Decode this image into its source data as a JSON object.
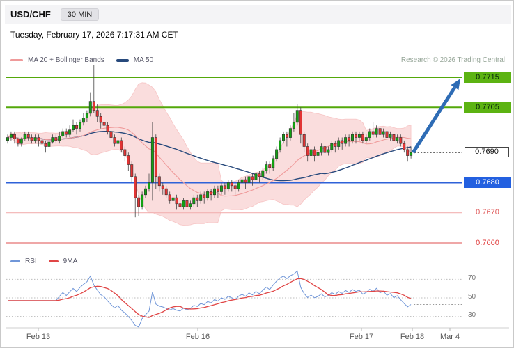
{
  "header": {
    "symbol": "USD/CHF",
    "interval": "30 MIN",
    "datetime": "Tuesday, February 17, 2026 7:17:31 AM CET"
  },
  "attribution": "Research © 2026 Trading Central",
  "legend": {
    "overlay": [
      {
        "label": "MA 20 + Bollinger Bands",
        "color": "#ef9a9a"
      },
      {
        "label": "MA 50",
        "color": "#27497c"
      }
    ],
    "lower": [
      {
        "label": "RSI",
        "color": "#7096d8"
      },
      {
        "label": "9MA",
        "color": "#e04545"
      }
    ]
  },
  "chart_data": {
    "type": "candlestick_with_rsi",
    "symbol": "USD/CHF",
    "interval": "30 MIN",
    "x_axis_labels": [
      "Feb 13",
      "Feb 16",
      "Feb 17",
      "Feb 18",
      "Mar 4"
    ],
    "levels": [
      {
        "label": "0.7715",
        "price": 0.7715,
        "role": "upside-target",
        "badge_bg": "#5cb312",
        "badge_text": "#06230b",
        "line_color": "#54a80a",
        "line_style": "solid",
        "line_width": 2
      },
      {
        "label": "0.7705",
        "price": 0.7705,
        "role": "resistance",
        "badge_bg": "#5cb312",
        "badge_text": "#06230b",
        "line_color": "#54a80a",
        "line_style": "solid",
        "line_width": 2
      },
      {
        "label": "0.7690",
        "price": 0.769,
        "role": "last-price",
        "badge_bg": "#ffffff",
        "badge_text": "#111111",
        "line_color": "#333333",
        "line_style": "dotted",
        "line_width": 1
      },
      {
        "label": "0.7680",
        "price": 0.768,
        "role": "support",
        "badge_bg": "#2360e0",
        "badge_text": "#ffffff",
        "line_color": "#2f62d8",
        "line_style": "solid",
        "line_width": 2
      },
      {
        "label": "0.7670",
        "price": 0.767,
        "role": "pivot",
        "badge_bg": "transparent",
        "badge_text": "#e05c5c",
        "line_color": "#f2b2b2",
        "line_style": "solid",
        "line_width": 1.2
      },
      {
        "label": "0.7660",
        "price": 0.766,
        "role": "support-2",
        "badge_bg": "transparent",
        "badge_text": "#e03c3c",
        "line_color": "#ea8a8a",
        "line_style": "solid",
        "line_width": 1.5
      }
    ],
    "rsi": {
      "ticks": [
        70,
        50,
        30
      ],
      "period": 14,
      "ma_period": 9
    },
    "arrow": {
      "direction": "up",
      "from_price": 0.769,
      "to_price": 0.7715,
      "color": "#2e6cb5"
    },
    "candle_up_color": "#12a112",
    "candle_down_color": "#e23434",
    "bollinger_fill": "#f3a6a6",
    "columns": [
      "open",
      "high",
      "low",
      "close"
    ],
    "candles": [
      [
        0.7694,
        0.7696,
        0.7693,
        0.7695
      ],
      [
        0.7695,
        0.7697,
        0.7694,
        0.7696
      ],
      [
        0.7696,
        0.7697,
        0.7693,
        0.76945
      ],
      [
        0.76945,
        0.7695,
        0.7692,
        0.7693
      ],
      [
        0.7693,
        0.7695,
        0.7692,
        0.76945
      ],
      [
        0.76945,
        0.7697,
        0.7694,
        0.7696
      ],
      [
        0.7696,
        0.7697,
        0.7694,
        0.7695
      ],
      [
        0.7695,
        0.7696,
        0.7693,
        0.7694
      ],
      [
        0.7694,
        0.7696,
        0.7693,
        0.7695
      ],
      [
        0.7695,
        0.7696,
        0.7692,
        0.7694
      ],
      [
        0.7694,
        0.7695,
        0.7691,
        0.7693
      ],
      [
        0.7693,
        0.7694,
        0.769,
        0.7692
      ],
      [
        0.7692,
        0.7694,
        0.7691,
        0.76935
      ],
      [
        0.76935,
        0.7696,
        0.7693,
        0.7695
      ],
      [
        0.7695,
        0.7696,
        0.7693,
        0.7694
      ],
      [
        0.7694,
        0.7697,
        0.7693,
        0.76955
      ],
      [
        0.76955,
        0.7698,
        0.7695,
        0.7697
      ],
      [
        0.7697,
        0.7698,
        0.7695,
        0.7696
      ],
      [
        0.7696,
        0.7699,
        0.7695,
        0.76975
      ],
      [
        0.76975,
        0.7701,
        0.7697,
        0.7699
      ],
      [
        0.7699,
        0.77,
        0.7696,
        0.7698
      ],
      [
        0.7698,
        0.7701,
        0.7697,
        0.77
      ],
      [
        0.77,
        0.7703,
        0.7699,
        0.77015
      ],
      [
        0.77015,
        0.7704,
        0.77,
        0.7703
      ],
      [
        0.7703,
        0.771,
        0.7702,
        0.7707
      ],
      [
        0.7707,
        0.7719,
        0.7703,
        0.7704
      ],
      [
        0.7704,
        0.7706,
        0.77,
        0.7702
      ],
      [
        0.7702,
        0.7703,
        0.7698,
        0.77
      ],
      [
        0.77,
        0.7701,
        0.7697,
        0.7699
      ],
      [
        0.7699,
        0.77,
        0.7696,
        0.7697
      ],
      [
        0.7697,
        0.7698,
        0.7693,
        0.7695
      ],
      [
        0.7695,
        0.7696,
        0.7692,
        0.7693
      ],
      [
        0.7693,
        0.7695,
        0.7692,
        0.7694
      ],
      [
        0.7694,
        0.7695,
        0.769,
        0.7691
      ],
      [
        0.7691,
        0.7692,
        0.7687,
        0.7689
      ],
      [
        0.7689,
        0.769,
        0.7684,
        0.7686
      ],
      [
        0.7686,
        0.7687,
        0.768,
        0.7682
      ],
      [
        0.7682,
        0.7683,
        0.76685,
        0.7675
      ],
      [
        0.7675,
        0.7676,
        0.7669,
        0.7672
      ],
      [
        0.7672,
        0.7677,
        0.7671,
        0.7676
      ],
      [
        0.7676,
        0.7679,
        0.7675,
        0.7678
      ],
      [
        0.7678,
        0.7683,
        0.7677,
        0.768
      ],
      [
        0.768,
        0.77,
        0.7674,
        0.7695
      ],
      [
        0.7695,
        0.7696,
        0.7678,
        0.7682
      ],
      [
        0.7682,
        0.7683,
        0.7677,
        0.7679
      ],
      [
        0.7679,
        0.768,
        0.7676,
        0.7678
      ],
      [
        0.7678,
        0.7679,
        0.7675,
        0.7676
      ],
      [
        0.7676,
        0.7677,
        0.7673,
        0.7674
      ],
      [
        0.7674,
        0.7676,
        0.7673,
        0.7675
      ],
      [
        0.7675,
        0.7676,
        0.7671,
        0.7673
      ],
      [
        0.7673,
        0.7674,
        0.767,
        0.7672
      ],
      [
        0.7672,
        0.7675,
        0.7671,
        0.7674
      ],
      [
        0.7674,
        0.7675,
        0.7669,
        0.7672
      ],
      [
        0.7672,
        0.7674,
        0.7671,
        0.7673
      ],
      [
        0.7673,
        0.7676,
        0.7672,
        0.7675
      ],
      [
        0.7675,
        0.7676,
        0.7672,
        0.7674
      ],
      [
        0.7674,
        0.7677,
        0.7673,
        0.7676
      ],
      [
        0.7676,
        0.7677,
        0.7673,
        0.7675
      ],
      [
        0.7675,
        0.7678,
        0.7674,
        0.7677
      ],
      [
        0.7677,
        0.7678,
        0.7674,
        0.7676
      ],
      [
        0.7676,
        0.7679,
        0.7675,
        0.7678
      ],
      [
        0.7678,
        0.7679,
        0.7675,
        0.7677
      ],
      [
        0.7677,
        0.768,
        0.7676,
        0.7679
      ],
      [
        0.7679,
        0.768,
        0.7676,
        0.7678
      ],
      [
        0.7678,
        0.7681,
        0.7677,
        0.768
      ],
      [
        0.768,
        0.7681,
        0.7677,
        0.7679
      ],
      [
        0.7679,
        0.768,
        0.7676,
        0.7678
      ],
      [
        0.7678,
        0.7681,
        0.7677,
        0.768
      ],
      [
        0.768,
        0.7682,
        0.7679,
        0.7681
      ],
      [
        0.7681,
        0.7682,
        0.7678,
        0.768
      ],
      [
        0.768,
        0.7683,
        0.7679,
        0.7682
      ],
      [
        0.7682,
        0.7683,
        0.7679,
        0.7681
      ],
      [
        0.7681,
        0.7684,
        0.768,
        0.7683
      ],
      [
        0.7683,
        0.7684,
        0.768,
        0.7682
      ],
      [
        0.7682,
        0.7685,
        0.7681,
        0.7684
      ],
      [
        0.7684,
        0.7687,
        0.7683,
        0.7686
      ],
      [
        0.7686,
        0.7687,
        0.7683,
        0.7685
      ],
      [
        0.7685,
        0.7689,
        0.7684,
        0.7688
      ],
      [
        0.7688,
        0.7692,
        0.7687,
        0.7691
      ],
      [
        0.7691,
        0.7695,
        0.769,
        0.7694
      ],
      [
        0.7694,
        0.7697,
        0.7693,
        0.7696
      ],
      [
        0.7696,
        0.7697,
        0.7692,
        0.7695
      ],
      [
        0.7695,
        0.7699,
        0.7694,
        0.7698
      ],
      [
        0.7698,
        0.7703,
        0.7697,
        0.77
      ],
      [
        0.77,
        0.7706,
        0.7699,
        0.7704
      ],
      [
        0.7704,
        0.7705,
        0.7693,
        0.7696
      ],
      [
        0.7696,
        0.7697,
        0.769,
        0.7692
      ],
      [
        0.7692,
        0.7693,
        0.7687,
        0.7689
      ],
      [
        0.7689,
        0.7692,
        0.7688,
        0.7691
      ],
      [
        0.7691,
        0.7692,
        0.7687,
        0.7689
      ],
      [
        0.7689,
        0.7691,
        0.7688,
        0.769
      ],
      [
        0.769,
        0.7693,
        0.7689,
        0.7692
      ],
      [
        0.7692,
        0.7693,
        0.7688,
        0.769
      ],
      [
        0.769,
        0.7692,
        0.7689,
        0.7691
      ],
      [
        0.7691,
        0.7694,
        0.769,
        0.7693
      ],
      [
        0.7693,
        0.7694,
        0.769,
        0.7692
      ],
      [
        0.7692,
        0.7695,
        0.7691,
        0.7694
      ],
      [
        0.7694,
        0.7695,
        0.7691,
        0.7693
      ],
      [
        0.7693,
        0.7696,
        0.7692,
        0.7695
      ],
      [
        0.7695,
        0.7696,
        0.7692,
        0.7694
      ],
      [
        0.7694,
        0.7697,
        0.7693,
        0.7696
      ],
      [
        0.7696,
        0.7697,
        0.7693,
        0.7695
      ],
      [
        0.7695,
        0.7697,
        0.7694,
        0.7696
      ],
      [
        0.7696,
        0.7697,
        0.7693,
        0.7694
      ],
      [
        0.7694,
        0.7696,
        0.7693,
        0.7695
      ],
      [
        0.7695,
        0.7698,
        0.7694,
        0.7697
      ],
      [
        0.7697,
        0.77,
        0.7695,
        0.7696
      ],
      [
        0.7696,
        0.7699,
        0.7695,
        0.7698
      ],
      [
        0.7698,
        0.7699,
        0.7694,
        0.7696
      ],
      [
        0.7696,
        0.7698,
        0.7695,
        0.7697
      ],
      [
        0.7697,
        0.7698,
        0.7694,
        0.7695
      ],
      [
        0.7695,
        0.7697,
        0.7694,
        0.7696
      ],
      [
        0.7696,
        0.7697,
        0.7693,
        0.7694
      ],
      [
        0.7694,
        0.7696,
        0.7693,
        0.7695
      ],
      [
        0.7695,
        0.7696,
        0.7692,
        0.7693
      ],
      [
        0.7693,
        0.7694,
        0.769,
        0.7691
      ],
      [
        0.7691,
        0.7692,
        0.7687,
        0.7689
      ],
      [
        0.7689,
        0.7692,
        0.7688,
        0.769
      ]
    ]
  }
}
